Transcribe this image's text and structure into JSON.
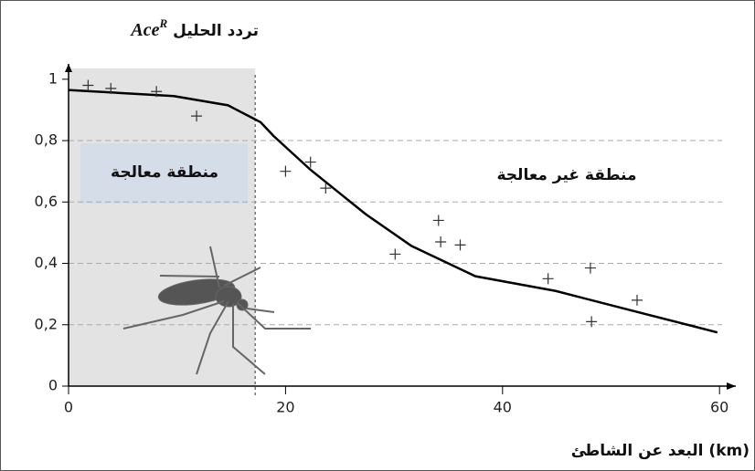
{
  "chart_data": {
    "type": "scatter",
    "y_label": "تردد الحليل",
    "y_label_symbol": "Ace",
    "y_label_sup": "R",
    "x_label": "البعد عن الشاطئ (km)",
    "annotations": [
      "منطقة معالجة",
      "منطقة غير معالجة"
    ],
    "shaded_region": [
      0,
      17.2
    ],
    "xlim": [
      0,
      61.5
    ],
    "ylim": [
      0,
      1.05
    ],
    "xticks": [
      0,
      20,
      40,
      60
    ],
    "yticks": [
      0,
      {
        "value": 0.2,
        "label": "0,2"
      },
      {
        "value": 0.4,
        "label": "0,4"
      },
      {
        "value": 0.6,
        "label": "0,6"
      },
      {
        "value": 0.8,
        "label": "0,8"
      },
      1
    ],
    "grid": true,
    "points": {
      "color": "#333333",
      "x": [
        1.8,
        3.9,
        8.1,
        11.8,
        20.0,
        22.3,
        23.7,
        30.1,
        34.1,
        34.3,
        36.1,
        44.2,
        48.1,
        48.2,
        52.4
      ],
      "y": [
        0.98,
        0.97,
        0.96,
        0.88,
        0.7,
        0.73,
        0.645,
        0.43,
        0.54,
        0.47,
        0.46,
        0.35,
        0.385,
        0.21,
        0.28
      ]
    },
    "curve": {
      "color": "#000000",
      "x": [
        0,
        9.7,
        14.7,
        17.7,
        18.9,
        22.3,
        27.4,
        31.6,
        37.5,
        44.9,
        52.6,
        59.8
      ],
      "y": [
        0.965,
        0.945,
        0.915,
        0.86,
        0.815,
        0.705,
        0.56,
        0.457,
        0.358,
        0.31,
        0.24,
        0.175
      ]
    }
  }
}
